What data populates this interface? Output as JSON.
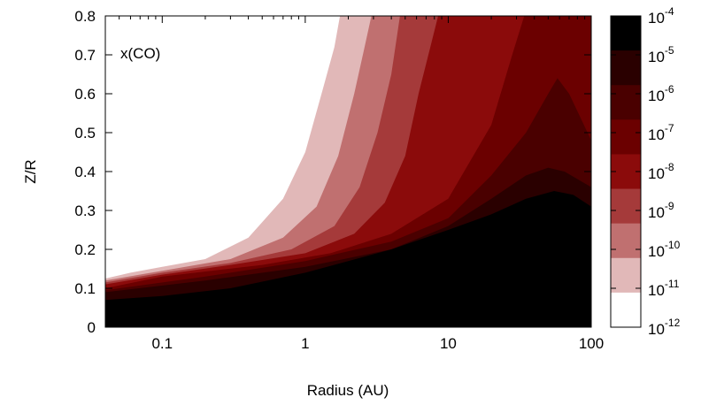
{
  "chart_data": {
    "type": "heatmap",
    "title": "",
    "annotation": "x(CO)",
    "xlabel": "Radius (AU)",
    "ylabel": "Z/R",
    "x_scale": "log",
    "xlim": [
      0.04,
      100
    ],
    "ylim": [
      0,
      0.8
    ],
    "x_ticks": [
      {
        "value": 0.1,
        "label": "0.1"
      },
      {
        "value": 1,
        "label": "1"
      },
      {
        "value": 10,
        "label": "10"
      },
      {
        "value": 100,
        "label": "100"
      }
    ],
    "y_ticks": [
      {
        "value": 0,
        "label": "0"
      },
      {
        "value": 0.1,
        "label": "0.1"
      },
      {
        "value": 0.2,
        "label": "0.2"
      },
      {
        "value": 0.3,
        "label": "0.3"
      },
      {
        "value": 0.4,
        "label": "0.4"
      },
      {
        "value": 0.5,
        "label": "0.5"
      },
      {
        "value": 0.6,
        "label": "0.6"
      },
      {
        "value": 0.7,
        "label": "0.7"
      },
      {
        "value": 0.8,
        "label": "0.8"
      }
    ],
    "colorbar": {
      "scale": "log",
      "levels": [
        {
          "label": "10",
          "exp": "-4"
        },
        {
          "label": "10",
          "exp": "-5"
        },
        {
          "label": "10",
          "exp": "-6"
        },
        {
          "label": "10",
          "exp": "-7"
        },
        {
          "label": "10",
          "exp": "-8"
        },
        {
          "label": "10",
          "exp": "-9"
        },
        {
          "label": "10",
          "exp": "-10"
        },
        {
          "label": "10",
          "exp": "-11"
        },
        {
          "label": "10",
          "exp": "-12"
        }
      ],
      "band_colors": [
        "#000000",
        "#2a0000",
        "#4a0000",
        "#6b0000",
        "#8b0b0b",
        "#a53a3a",
        "#c07070",
        "#e1b8b8",
        "#ffffff"
      ]
    },
    "contours": [
      {
        "level": "1e-11",
        "color": "#e1b8b8",
        "points": [
          [
            0.04,
            0.125
          ],
          [
            0.06,
            0.14
          ],
          [
            0.1,
            0.155
          ],
          [
            0.2,
            0.175
          ],
          [
            0.4,
            0.23
          ],
          [
            0.7,
            0.33
          ],
          [
            1.0,
            0.45
          ],
          [
            1.3,
            0.6
          ],
          [
            1.6,
            0.72
          ],
          [
            1.75,
            0.8
          ]
        ]
      },
      {
        "level": "1e-10",
        "color": "#c07070",
        "points": [
          [
            0.04,
            0.12
          ],
          [
            0.1,
            0.145
          ],
          [
            0.3,
            0.175
          ],
          [
            0.7,
            0.23
          ],
          [
            1.2,
            0.31
          ],
          [
            1.7,
            0.44
          ],
          [
            2.2,
            0.6
          ],
          [
            2.6,
            0.72
          ],
          [
            2.9,
            0.8
          ]
        ]
      },
      {
        "level": "1e-9",
        "color": "#a53a3a",
        "points": [
          [
            0.04,
            0.115
          ],
          [
            0.1,
            0.14
          ],
          [
            0.3,
            0.165
          ],
          [
            0.8,
            0.2
          ],
          [
            1.6,
            0.26
          ],
          [
            2.4,
            0.36
          ],
          [
            3.2,
            0.5
          ],
          [
            4.0,
            0.65
          ],
          [
            4.6,
            0.8
          ]
        ]
      },
      {
        "level": "1e-8",
        "color": "#8b0b0b",
        "points": [
          [
            0.04,
            0.11
          ],
          [
            0.1,
            0.135
          ],
          [
            0.3,
            0.16
          ],
          [
            1.0,
            0.19
          ],
          [
            2.2,
            0.24
          ],
          [
            3.6,
            0.32
          ],
          [
            5.0,
            0.44
          ],
          [
            6.2,
            0.6
          ],
          [
            7.5,
            0.72
          ],
          [
            8.5,
            0.8
          ]
        ]
      },
      {
        "level": "1e-7",
        "color": "#6b0000",
        "points": [
          [
            0.04,
            0.1
          ],
          [
            0.1,
            0.13
          ],
          [
            0.5,
            0.16
          ],
          [
            1.5,
            0.19
          ],
          [
            4.0,
            0.24
          ],
          [
            10,
            0.33
          ],
          [
            20,
            0.52
          ],
          [
            28,
            0.7
          ],
          [
            34,
            0.8
          ]
        ]
      },
      {
        "level": "1e-6",
        "color": "#4a0000",
        "points": [
          [
            0.04,
            0.095
          ],
          [
            0.2,
            0.13
          ],
          [
            1.0,
            0.17
          ],
          [
            4,
            0.22
          ],
          [
            10,
            0.28
          ],
          [
            20,
            0.39
          ],
          [
            35,
            0.5
          ],
          [
            50,
            0.6
          ],
          [
            58,
            0.64
          ],
          [
            70,
            0.6
          ],
          [
            100,
            0.48
          ]
        ]
      },
      {
        "level": "1e-5",
        "color": "#2a0000",
        "points": [
          [
            0.04,
            0.09
          ],
          [
            0.2,
            0.12
          ],
          [
            1.0,
            0.155
          ],
          [
            4,
            0.2
          ],
          [
            10,
            0.26
          ],
          [
            20,
            0.33
          ],
          [
            35,
            0.39
          ],
          [
            50,
            0.41
          ],
          [
            65,
            0.4
          ],
          [
            100,
            0.36
          ]
        ]
      },
      {
        "level": "1e-4",
        "color": "#000000",
        "points": [
          [
            0.04,
            0.07
          ],
          [
            0.1,
            0.08
          ],
          [
            0.3,
            0.1
          ],
          [
            1.0,
            0.14
          ],
          [
            2.0,
            0.17
          ],
          [
            4.0,
            0.2
          ],
          [
            10,
            0.25
          ],
          [
            20,
            0.29
          ],
          [
            35,
            0.33
          ],
          [
            55,
            0.35
          ],
          [
            75,
            0.34
          ],
          [
            100,
            0.31
          ]
        ]
      }
    ]
  }
}
